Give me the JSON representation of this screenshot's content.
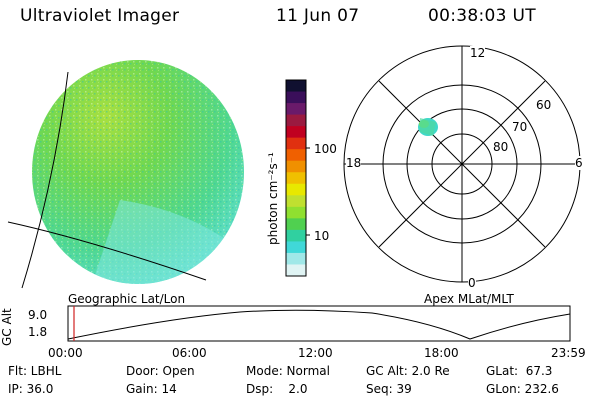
{
  "header": {
    "instrument": "Ultraviolet Imager",
    "date": "11 Jun 07",
    "time": "00:38:03 UT"
  },
  "left_panel": {
    "label": "Geographic Lat/Lon"
  },
  "right_panel": {
    "label": "Apex MLat/MLT",
    "mlt_labels": {
      "top": "12",
      "bottom": "0",
      "left": "18",
      "right": "6"
    },
    "lat_labels": [
      "60",
      "70",
      "80"
    ]
  },
  "colorbar": {
    "unit_label": "photon cm⁻²s⁻¹",
    "tick_labels": [
      "100",
      "10"
    ],
    "colors": [
      "#101030",
      "#3a0f5a",
      "#6a1a6a",
      "#9a1a40",
      "#c00020",
      "#e03010",
      "#f06000",
      "#f09000",
      "#f0c000",
      "#e8e800",
      "#c0e030",
      "#90e030",
      "#50d050",
      "#30d0a0",
      "#40d8d8",
      "#a0e8e8",
      "#e0f4f4"
    ]
  },
  "altitude_plot": {
    "axis_label": "GC Alt",
    "y_ticks": [
      "9.0",
      "1.8"
    ],
    "x_ticks": [
      "00:00",
      "06:00",
      "12:00",
      "18:00",
      "23:59"
    ],
    "marker_color": "#d02020"
  },
  "info": {
    "row1": [
      "Flt: LBHL",
      "Door: Open",
      "Mode: Normal",
      "GC Alt: 2.0 Re",
      "GLat:  67.3"
    ],
    "row2": [
      "IP: 36.0",
      "Gain: 14",
      "Dsp:    2.0",
      "Seq: 39",
      "GLon: 232.6"
    ]
  }
}
